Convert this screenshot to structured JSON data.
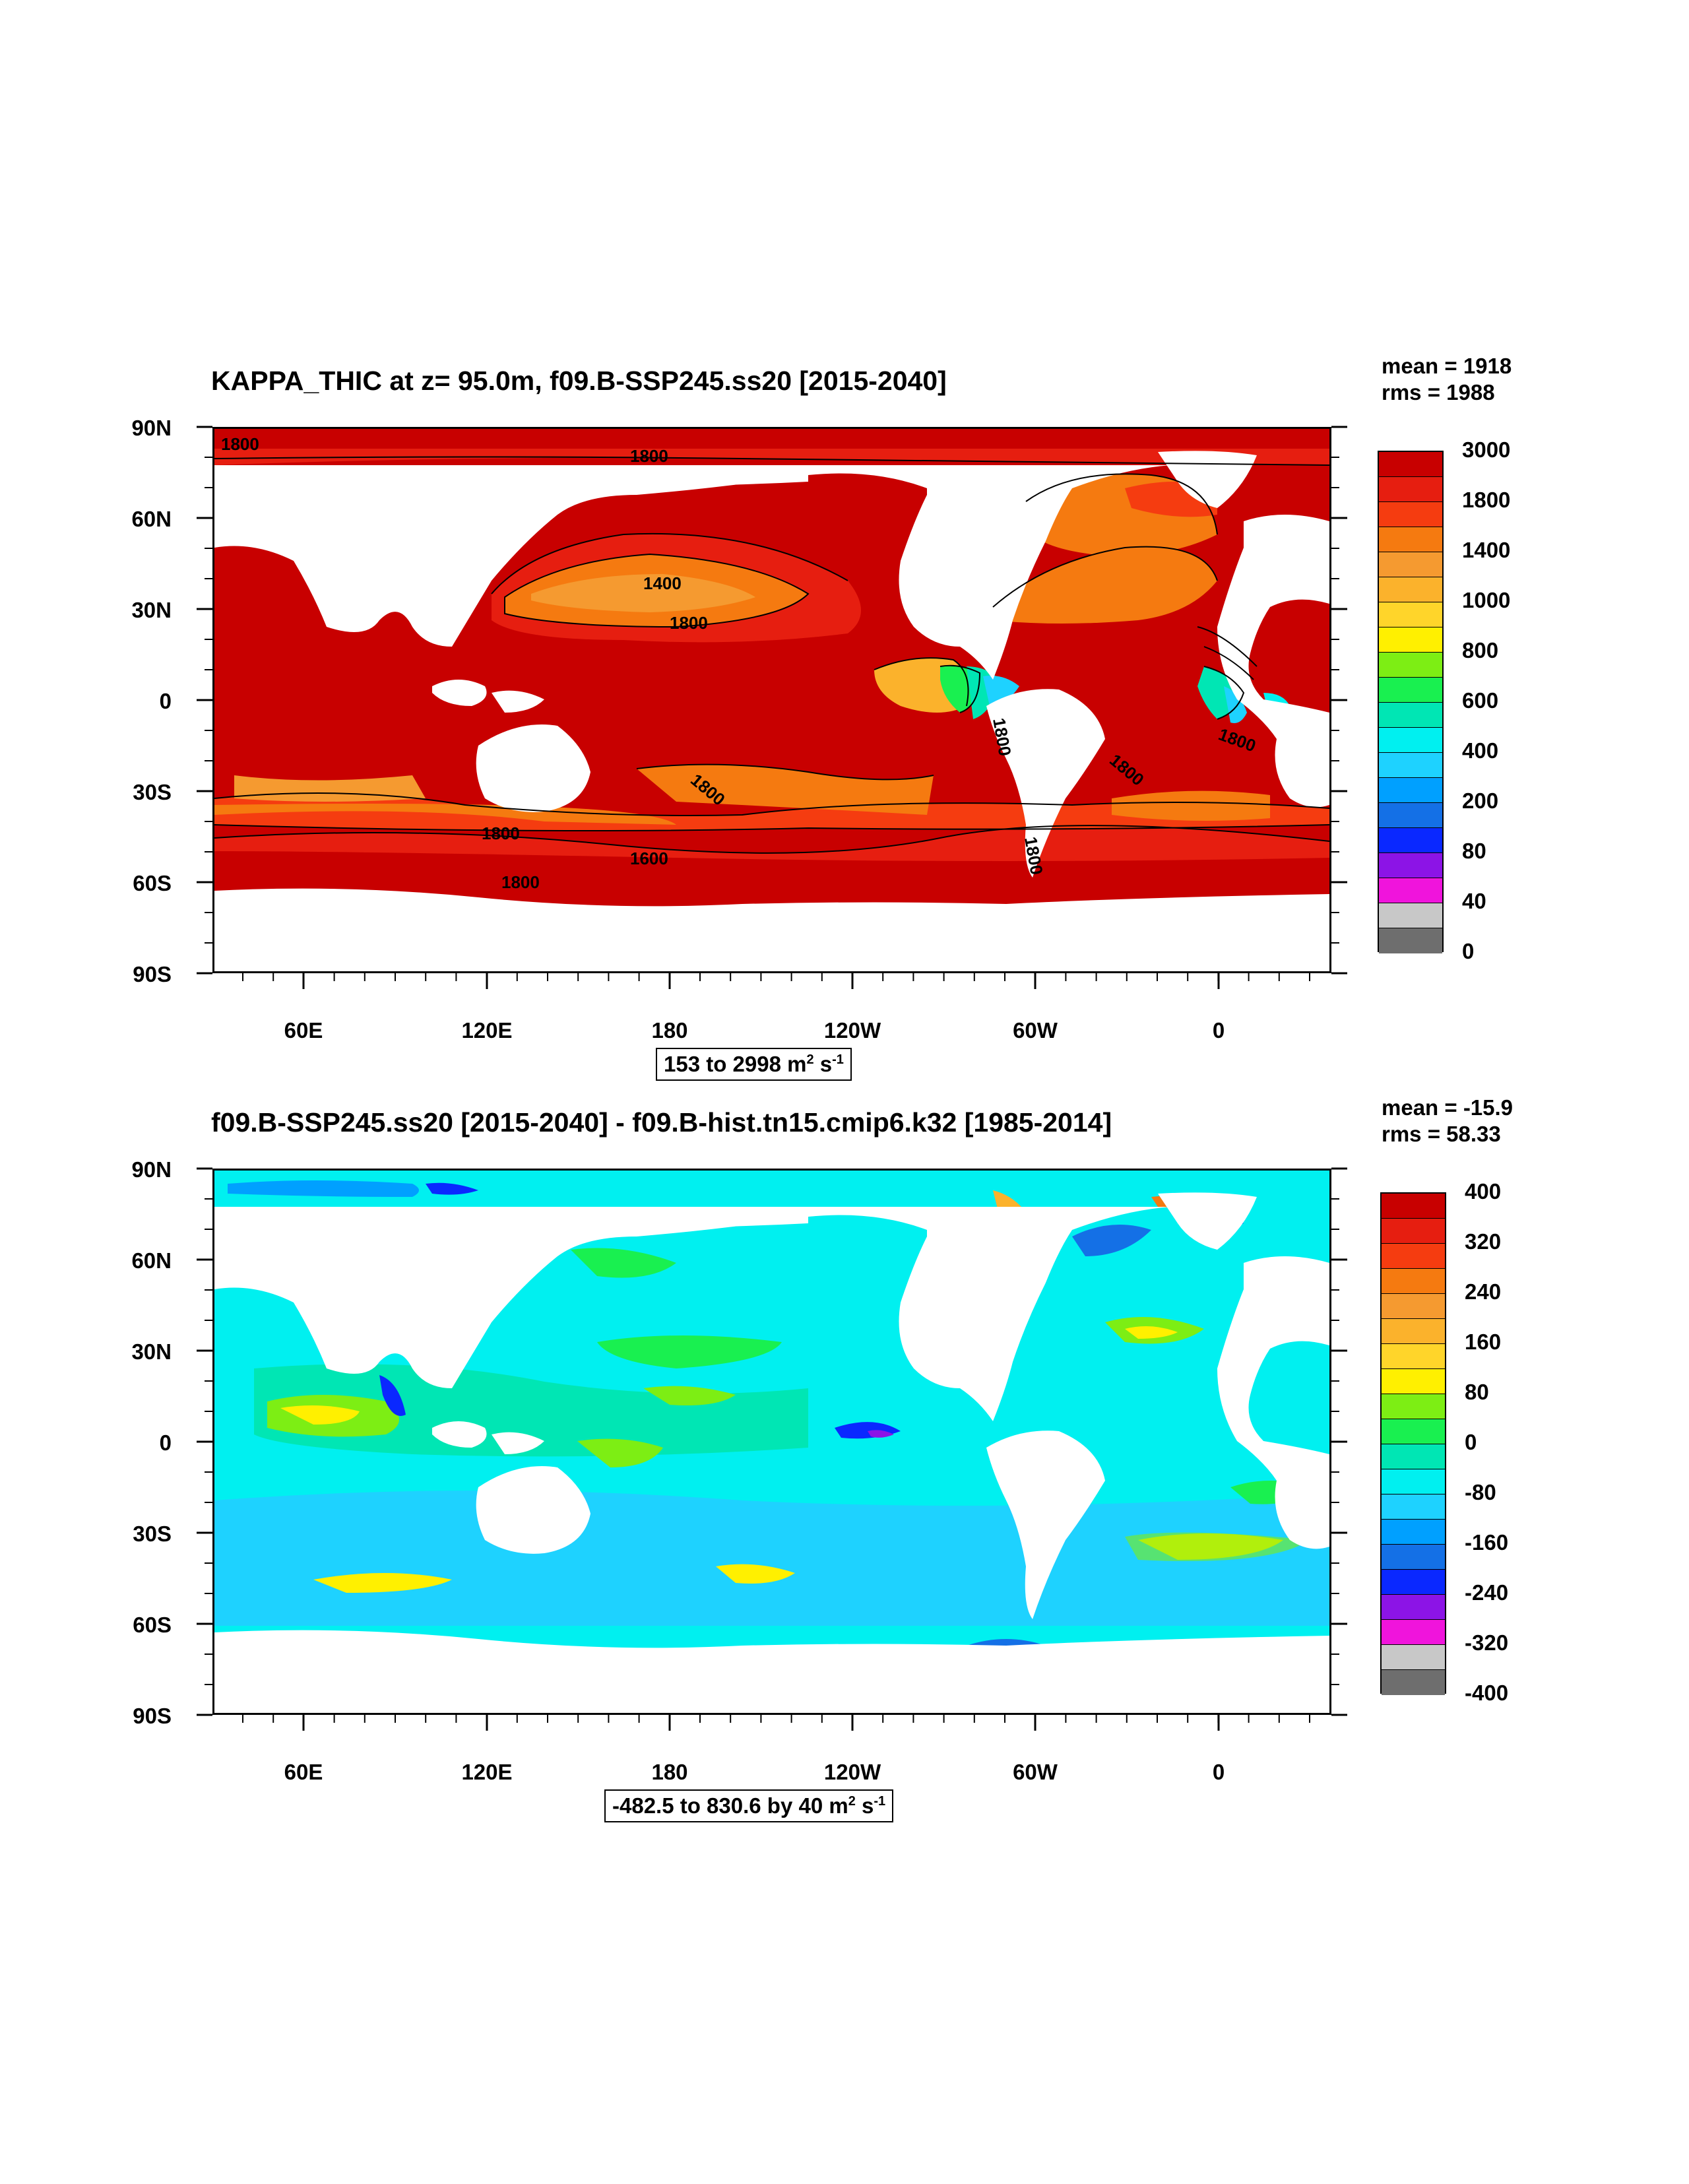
{
  "panel1": {
    "title": "KAPPA_THIC at z=  95.0m, f09.B-SSP245.ss20 [2015-2040]",
    "mean": "mean = 1918",
    "rms": "rms = 1988",
    "range": {
      "pre": "153 to 2998 m",
      "sup1": "2",
      "mid": " s",
      "sup2": "-1"
    },
    "contour_labels": [
      "1800",
      "1800",
      "1400",
      "1800",
      "1800",
      "1800",
      "1800",
      "1600",
      "1800",
      "1800",
      "1800",
      "1800"
    ],
    "colorbar": {
      "labels": [
        "3000",
        "1800",
        "1400",
        "1000",
        "800",
        "600",
        "400",
        "200",
        "80",
        "40",
        "0"
      ],
      "colors": [
        "#c80000",
        "#e61e10",
        "#f53c10",
        "#f57a10",
        "#f59a30",
        "#fbb22c",
        "#ffd52a",
        "#fff000",
        "#7dee14",
        "#19f050",
        "#00e6b4",
        "#00f0f0",
        "#1ed2ff",
        "#00a0ff",
        "#1470e6",
        "#0a28ff",
        "#8c14e6",
        "#f014dc",
        "#c8c8c8",
        "#6e6e6e"
      ]
    }
  },
  "panel2": {
    "title": "f09.B-SSP245.ss20 [2015-2040] - f09.B-hist.tn15.cmip6.k32 [1985-2014]",
    "mean": "mean = -15.9",
    "rms": "rms = 58.33",
    "range": {
      "pre": "-482.5 to 830.6 by 40 m",
      "sup1": "2",
      "mid": " s",
      "sup2": "-1"
    },
    "colorbar": {
      "labels": [
        "400",
        "320",
        "240",
        "160",
        "80",
        "0",
        "-80",
        "-160",
        "-240",
        "-320",
        "-400"
      ],
      "colors": [
        "#c80000",
        "#e61e10",
        "#f53c10",
        "#f57a10",
        "#f59a30",
        "#fbb22c",
        "#ffd52a",
        "#fff000",
        "#7dee14",
        "#19f050",
        "#00e6b4",
        "#00f0f0",
        "#1ed2ff",
        "#00a0ff",
        "#1470e6",
        "#0a28ff",
        "#8c14e6",
        "#f014dc",
        "#c8c8c8",
        "#6e6e6e"
      ]
    }
  },
  "axes": {
    "lat_labels": [
      "90N",
      "60N",
      "30N",
      "0",
      "30S",
      "60S",
      "90S"
    ],
    "lon_labels": [
      "60E",
      "120E",
      "180",
      "120W",
      "60W",
      "0"
    ]
  }
}
